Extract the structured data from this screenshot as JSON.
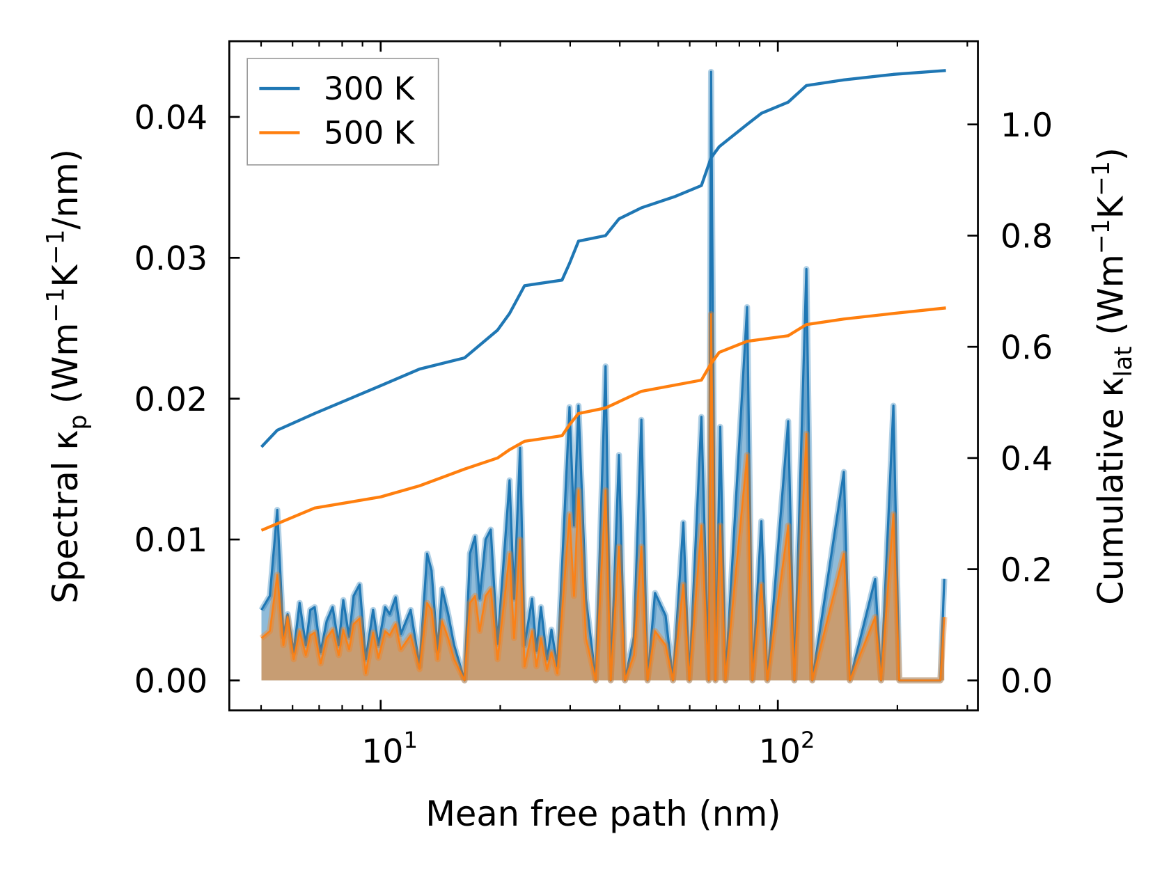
{
  "chart_data": {
    "type": "line",
    "title": "",
    "xlabel": "Mean free path (nm)",
    "ylabel_left": {
      "main": "Spectral κ",
      "sub": "p",
      "units": " (Wm",
      "sup1": "−1",
      "k": "K",
      "sup2": "−1",
      "tail": "/nm)"
    },
    "ylabel_right": {
      "main": "Cumulative κ",
      "sub": "lat",
      "units": " (Wm",
      "sup1": "−1",
      "k": "K",
      "sup2": "−1",
      "tail": ")"
    },
    "xscale": "log",
    "xlim": [
      4.5,
      300
    ],
    "ylim_left": [
      -0.0021,
      0.0455
    ],
    "ylim_right": [
      -0.053,
      1.143
    ],
    "x_ticks": [
      {
        "value": 10,
        "base": "10",
        "exp": "1"
      },
      {
        "value": 100,
        "base": "10",
        "exp": "2"
      }
    ],
    "y_ticks_left": [
      "0.00",
      "0.01",
      "0.02",
      "0.03",
      "0.04"
    ],
    "y_ticks_left_values": [
      0,
      0.01,
      0.02,
      0.03,
      0.04
    ],
    "y_ticks_right": [
      "0.0",
      "0.2",
      "0.4",
      "0.6",
      "0.8",
      "1.0"
    ],
    "y_ticks_right_values": [
      0,
      0.2,
      0.4,
      0.6,
      0.8,
      1.0
    ],
    "legend": {
      "placement": "top-left",
      "entries": [
        "300 K",
        "500 K"
      ]
    },
    "grid": false,
    "colors": {
      "300K": "#1f77b4",
      "500K": "#ff7f0e"
    },
    "spectral": {
      "x": [
        5.01,
        5.26,
        5.49,
        5.69,
        5.83,
        6.04,
        6.25,
        6.48,
        6.65,
        6.82,
        7.06,
        7.31,
        7.57,
        7.84,
        8.05,
        8.33,
        8.55,
        8.85,
        9.17,
        9.57,
        9.87,
        10.26,
        10.54,
        10.91,
        11.24,
        11.9,
        12.53,
        13.09,
        13.43,
        13.91,
        14.28,
        14.79,
        15.31,
        16.26,
        16.78,
        17.29,
        17.75,
        18.37,
        18.93,
        19.69,
        21.11,
        21.67,
        22.44,
        23.03,
        24.05,
        24.68,
        25.33,
        26.23,
        26.92,
        27.86,
        29.89,
        30.68,
        31.48,
        32.88,
        34.8,
        36.83,
        37.96,
        39.81,
        41.21,
        43.42,
        45.34,
        46.97,
        49.07,
        52.17,
        54.46,
        57.83,
        59.86,
        64.2,
        67.0,
        67.91,
        69.68,
        71.6,
        73.8,
        83.7,
        86.3,
        90.9,
        94.1,
        106.2,
        110.1,
        118.0,
        122.1,
        146.6,
        151.8,
        175.8,
        182.0,
        195.4,
        202.2,
        256.6,
        262.4
      ],
      "series": [
        {
          "name": "300 K",
          "values": [
            0.005,
            0.006,
            0.0121,
            0.0031,
            0.0047,
            0.002,
            0.0055,
            0.0025,
            0.005,
            0.0052,
            0.002,
            0.0042,
            0.0052,
            0.0025,
            0.0057,
            0.0031,
            0.006,
            0.0068,
            0.0015,
            0.005,
            0.0025,
            0.0052,
            0.0047,
            0.0059,
            0.0033,
            0.005,
            0.001,
            0.009,
            0.0078,
            0.0021,
            0.0065,
            0.0047,
            0.0025,
            0,
            0.009,
            0.0102,
            0.0058,
            0.01,
            0.0107,
            0.0026,
            0.0142,
            0.0058,
            0.0165,
            0.0025,
            0.0058,
            0.0021,
            0.0052,
            0.0015,
            0.0036,
            0.001,
            0.0194,
            0.011,
            0.0195,
            0.0058,
            0,
            0.0223,
            0,
            0.016,
            0,
            0.0031,
            0.0185,
            0,
            0.0062,
            0.0046,
            0,
            0.0112,
            0,
            0.0187,
            0,
            0.0432,
            0,
            0.018,
            0,
            0.0265,
            0,
            0.0113,
            0,
            0.0184,
            0,
            0.0292,
            0,
            0.0148,
            0,
            0.0072,
            0,
            0.0195,
            0,
            0,
            0.0072
          ]
        },
        {
          "name": "500 K",
          "values": [
            0.003,
            0.0035,
            0.0075,
            0.0025,
            0.0045,
            0.0015,
            0.0035,
            0.0018,
            0.0032,
            0.0034,
            0.0012,
            0.003,
            0.0036,
            0.0018,
            0.0036,
            0.0022,
            0.004,
            0.0044,
            0.0005,
            0.0034,
            0.0016,
            0.0035,
            0.0032,
            0.004,
            0.0022,
            0.0032,
            0.0008,
            0.0055,
            0.005,
            0.0015,
            0.0042,
            0.003,
            0.0015,
            0,
            0.0055,
            0.006,
            0.0035,
            0.006,
            0.0065,
            0.0015,
            0.009,
            0.003,
            0.01,
            0.001,
            0.0035,
            0.001,
            0.003,
            0.0008,
            0.002,
            0.0005,
            0.0118,
            0.006,
            0.0135,
            0.003,
            0,
            0.0135,
            0,
            0.0095,
            0,
            0.0018,
            0.0095,
            0,
            0.0035,
            0.0025,
            0,
            0.0068,
            0,
            0.011,
            0,
            0.026,
            0,
            0.011,
            0,
            0.016,
            0,
            0.0068,
            0,
            0.011,
            0,
            0.0175,
            0,
            0.009,
            0,
            0.0045,
            0,
            0.0118,
            0,
            0,
            0.0045
          ]
        }
      ]
    },
    "cumulative": {
      "series": [
        {
          "name": "300 K",
          "x": [
            5.01,
            5.49,
            6.82,
            10.0,
            12.53,
            16.26,
            19.69,
            21.11,
            23.03,
            28.62,
            29.89,
            31.48,
            36.83,
            39.81,
            45.34,
            54.9,
            64.2,
            67.91,
            71.2,
            83.7,
            90.9,
            106.2,
            118.0,
            146.6,
            195.4,
            265
          ],
          "values": [
            0.42,
            0.45,
            0.48,
            0.53,
            0.56,
            0.58,
            0.63,
            0.66,
            0.71,
            0.72,
            0.75,
            0.79,
            0.8,
            0.83,
            0.85,
            0.87,
            0.89,
            0.94,
            0.96,
            1.0,
            1.02,
            1.04,
            1.07,
            1.08,
            1.09,
            1.097
          ]
        },
        {
          "name": "500 K",
          "x": [
            5.01,
            6.82,
            10.0,
            12.53,
            16.26,
            19.69,
            21.11,
            23.03,
            28.62,
            29.89,
            31.48,
            36.83,
            45.34,
            64.2,
            67.91,
            71.2,
            83.7,
            106.2,
            118.0,
            146.6,
            195.4,
            265
          ],
          "values": [
            0.27,
            0.31,
            0.33,
            0.35,
            0.38,
            0.4,
            0.415,
            0.43,
            0.44,
            0.46,
            0.48,
            0.49,
            0.52,
            0.54,
            0.57,
            0.59,
            0.61,
            0.62,
            0.64,
            0.65,
            0.66,
            0.67
          ]
        }
      ]
    }
  }
}
